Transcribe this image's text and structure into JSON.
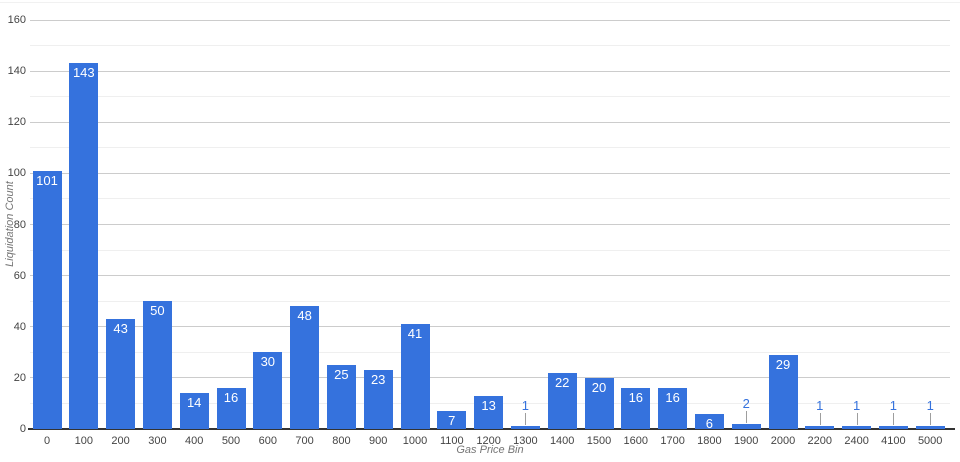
{
  "chart_data": {
    "type": "bar",
    "title": "",
    "xlabel": "Gas Price Bin",
    "ylabel": "Liquidation Count",
    "categories": [
      "0",
      "100",
      "200",
      "300",
      "400",
      "500",
      "600",
      "700",
      "800",
      "900",
      "1000",
      "1100",
      "1200",
      "1300",
      "1400",
      "1500",
      "1600",
      "1700",
      "1800",
      "1900",
      "2000",
      "2200",
      "2400",
      "4100",
      "5000"
    ],
    "values": [
      101,
      143,
      43,
      50,
      14,
      16,
      30,
      48,
      25,
      23,
      41,
      7,
      13,
      1,
      22,
      20,
      16,
      16,
      6,
      2,
      29,
      1,
      1,
      1,
      1
    ],
    "ylim": [
      0,
      160
    ],
    "yticks": [
      0,
      20,
      40,
      60,
      80,
      100,
      120,
      140,
      160
    ],
    "minor_gridline_step": 10,
    "grid": true,
    "legend": "none",
    "annotation_outside_threshold": 4,
    "colors": {
      "bar": "#3572dd",
      "label_inside": "#ffffff",
      "label_outside": "#3572dd",
      "major_grid": "#cccccc",
      "minor_grid": "#efefef",
      "baseline": "#333333",
      "tick_text": "#444444",
      "axis_title": "#757575",
      "stem": "#9e9e9e",
      "background": "#ffffff"
    }
  }
}
